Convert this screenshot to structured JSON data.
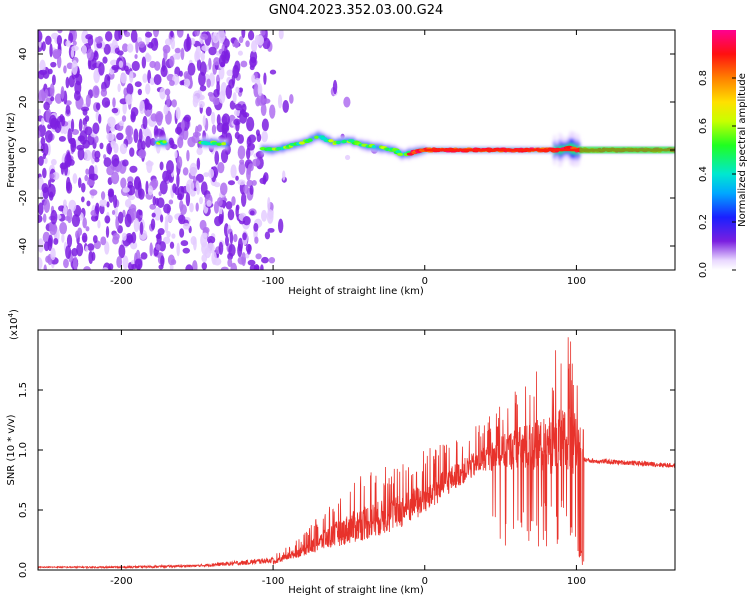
{
  "figure": {
    "title": "GN04.2023.352.03.00.G24"
  },
  "chart_data": [
    {
      "type": "heatmap",
      "title": "GN04.2023.352.03.00.G24",
      "xlabel": "Height of straight line (km)",
      "ylabel": "Frequency (Hz)",
      "xlim": [
        -255,
        165
      ],
      "ylim": [
        -50,
        50
      ],
      "xticks": [
        -200,
        -100,
        0,
        100
      ],
      "xtick_labels": [
        "-200",
        "-100",
        "0",
        "100"
      ],
      "yticks": [
        -40,
        -20,
        0,
        20,
        40
      ],
      "ytick_labels": [
        "-40",
        "-20",
        "0",
        "20",
        "40"
      ],
      "grid": false,
      "colorscale": "rainbow (purple-blue-cyan-green-yellow-orange-red-magenta)",
      "colorbar": {
        "label": "Normalized spectral amplitude",
        "range": [
          0,
          1
        ],
        "ticks": [
          0.0,
          0.2,
          0.4,
          0.6,
          0.8
        ],
        "tick_labels": [
          "0.0",
          "0.2",
          "0.4",
          "0.6",
          "0.8"
        ]
      },
      "ridge": {
        "description_points_x": [
          -175,
          -140,
          -100,
          -80,
          -70,
          -60,
          -50,
          -40,
          -30,
          -20,
          -15,
          0,
          50,
          90,
          95,
          100,
          165
        ],
        "description_points_y": [
          3,
          3,
          0,
          3,
          6,
          3,
          4,
          2,
          1,
          0,
          -2,
          0,
          0,
          0,
          1,
          0,
          0
        ],
        "peak_amplitude_x": [
          -175,
          -140,
          -100,
          -50,
          0,
          100,
          165
        ],
        "peak_amplitude": [
          0.4,
          0.45,
          0.45,
          0.55,
          0.95,
          0.95,
          0.95
        ]
      }
    },
    {
      "type": "line",
      "xlabel": "Height of straight line (km)",
      "ylabel": "SNR (10 * v/v)",
      "y_multiplier": "(x10",
      "y_multiplier_exp": "4",
      "y_multiplier_close": ")",
      "xlim": [
        -255,
        165
      ],
      "ylim": [
        0,
        20000
      ],
      "xticks": [
        -200,
        -100,
        0,
        100
      ],
      "xtick_labels": [
        "-200",
        "-100",
        "0",
        "100"
      ],
      "yticks": [
        0,
        5000,
        10000,
        15000
      ],
      "ytick_labels": [
        "0.0",
        "0.5",
        "1.0",
        "1.5"
      ],
      "grid": false,
      "series_color": "#e8322b",
      "envelope": {
        "x": [
          -255,
          -200,
          -150,
          -120,
          -100,
          -80,
          -60,
          -40,
          -20,
          0,
          20,
          40,
          50,
          60,
          80,
          95,
          100,
          105,
          110,
          140,
          165
        ],
        "y_base": [
          200,
          150,
          250,
          400,
          600,
          1500,
          2600,
          3500,
          4200,
          5500,
          7500,
          9000,
          9300,
          9600,
          9700,
          9800,
          9700,
          9200,
          9100,
          8900,
          8700
        ],
        "y_peak": [
          300,
          350,
          500,
          900,
          1200,
          3000,
          6000,
          8500,
          9000,
          10000,
          11000,
          12500,
          14000,
          15500,
          17500,
          20000,
          18000,
          9500,
          9300,
          9100,
          8900
        ]
      }
    }
  ]
}
